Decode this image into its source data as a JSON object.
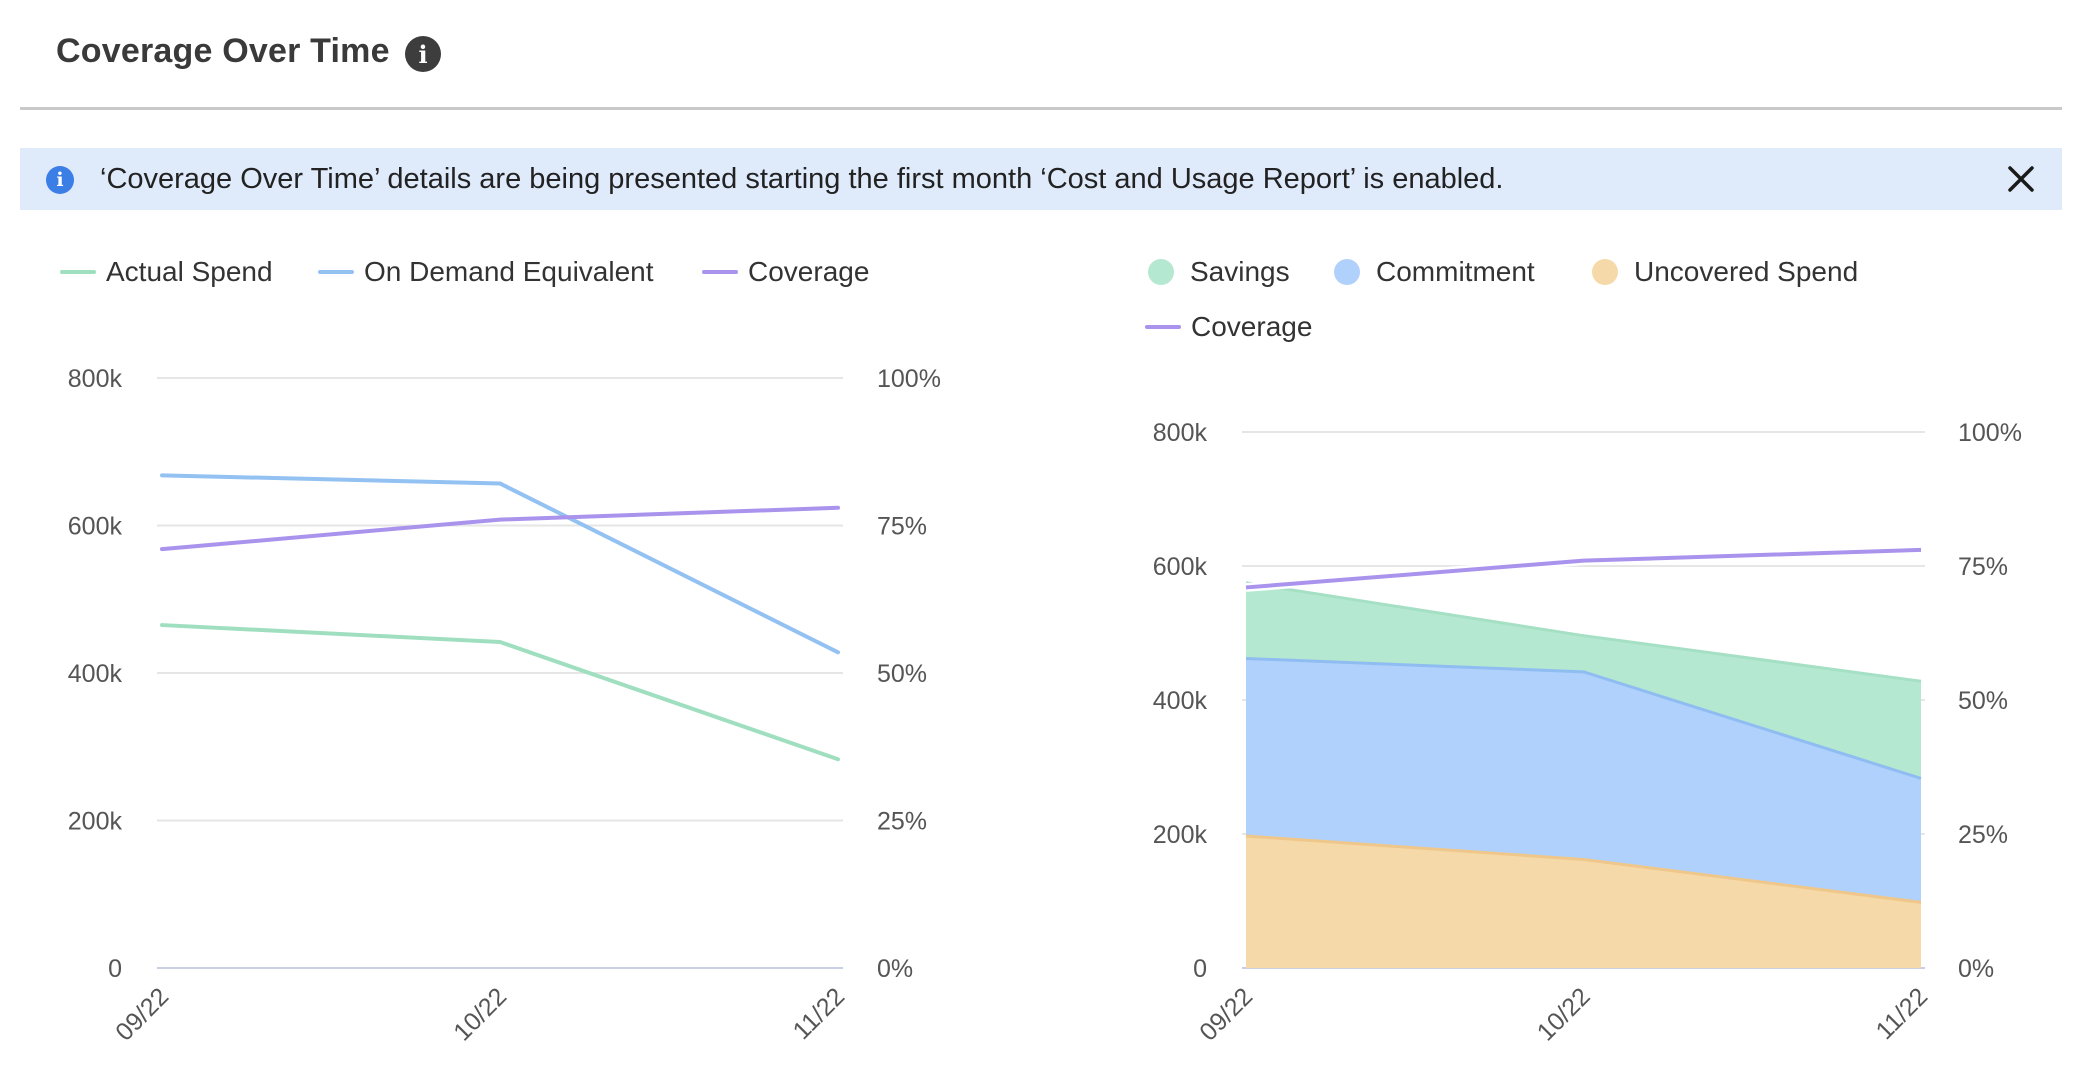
{
  "header": {
    "title": "Coverage Over Time"
  },
  "banner": {
    "text": "‘Coverage Over Time’ details are being presented starting the first month ‘Cost and Usage Report’ is enabled."
  },
  "colors": {
    "actual_spend": "#9fdfc0",
    "on_demand": "#92c1f2",
    "coverage": "#a993ec",
    "savings": "#b5e8d1",
    "commitment": "#b0d1fb",
    "uncovered": "#f6d9a8",
    "info_blue": "#3a7ee6"
  },
  "chart_data": [
    {
      "type": "line",
      "categories": [
        "09/22",
        "10/22",
        "11/22"
      ],
      "series": [
        {
          "name": "Actual Spend",
          "axis": "left",
          "values": [
            465000,
            442000,
            283000
          ]
        },
        {
          "name": "On Demand Equivalent",
          "axis": "left",
          "values": [
            668000,
            657000,
            428000
          ]
        },
        {
          "name": "Coverage",
          "axis": "right",
          "values": [
            71,
            76,
            78
          ]
        }
      ],
      "y_left": {
        "ticks": [
          "0",
          "200k",
          "400k",
          "600k",
          "800k"
        ],
        "range": [
          0,
          800000
        ]
      },
      "y_right": {
        "ticks": [
          "0%",
          "25%",
          "50%",
          "75%",
          "100%"
        ],
        "range": [
          0,
          100
        ]
      },
      "grid": true,
      "legend": "top-left"
    },
    {
      "type": "area",
      "stacked": true,
      "categories": [
        "09/22",
        "10/22",
        "11/22"
      ],
      "series": [
        {
          "name": "Savings",
          "axis": "left",
          "values": [
            113000,
            54000,
            145000
          ]
        },
        {
          "name": "Commitment",
          "axis": "left",
          "values": [
            265000,
            280000,
            185000
          ]
        },
        {
          "name": "Uncovered Spend",
          "axis": "left",
          "values": [
            197000,
            162000,
            98000
          ]
        },
        {
          "name": "Coverage",
          "axis": "right",
          "values": [
            71,
            76,
            78
          ]
        }
      ],
      "y_left": {
        "ticks": [
          "0",
          "200k",
          "400k",
          "600k",
          "800k"
        ],
        "range": [
          0,
          800000
        ]
      },
      "y_right": {
        "ticks": [
          "0%",
          "25%",
          "50%",
          "75%",
          "100%"
        ],
        "range": [
          0,
          100
        ]
      },
      "grid": true,
      "legend": "top-left"
    }
  ]
}
